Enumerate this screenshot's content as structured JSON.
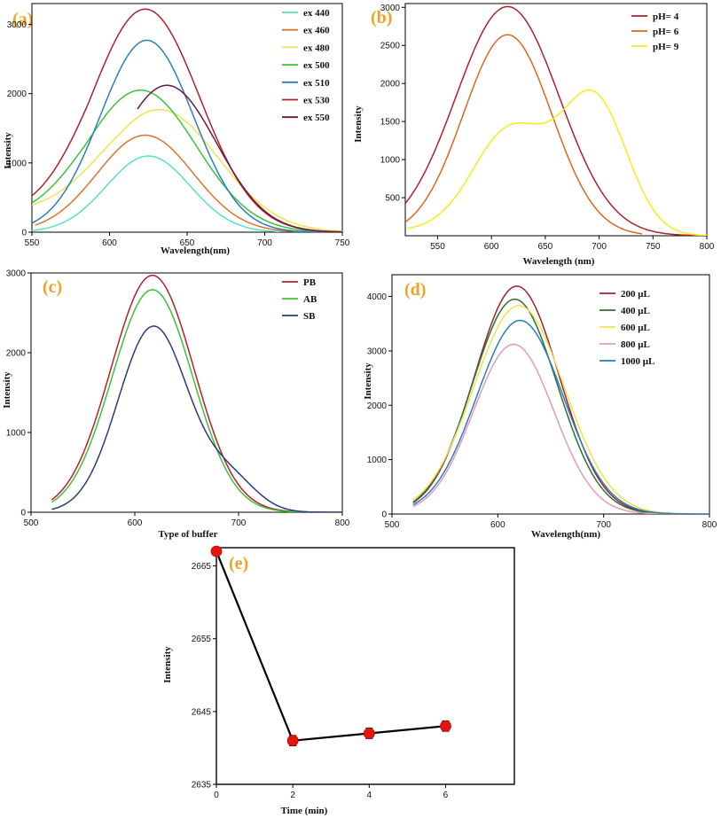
{
  "chart_data": [
    {
      "id": "a",
      "type": "line",
      "label": "(a)",
      "xlabel": "Wavelength(nm)",
      "ylabel": "Intensity",
      "xlim": [
        550,
        750
      ],
      "ylim": [
        0,
        3300
      ],
      "xticks": [
        550,
        600,
        650,
        700,
        750
      ],
      "yticks": [
        0,
        1000,
        2000,
        3000
      ],
      "legend_position": "top-right",
      "series": [
        {
          "name": "ex 440",
          "color": "#56e0c8",
          "components": [
            {
              "mu": 625,
              "sigma": 27,
              "amp": 1100
            }
          ],
          "start": 550,
          "end": 710
        },
        {
          "name": "ex 460",
          "color": "#d9752e",
          "components": [
            {
              "mu": 623,
              "sigma": 31,
              "amp": 1400
            }
          ],
          "start": 552,
          "end": 750
        },
        {
          "name": "ex 480",
          "color": "#f2e24c",
          "components": [
            {
              "mu": 632,
              "sigma": 38,
              "amp": 1770
            }
          ],
          "start": 550,
          "end": 750,
          "offset": 230
        },
        {
          "name": "ex 500",
          "color": "#3bc23b",
          "components": [
            {
              "mu": 620,
              "sigma": 36,
              "amp": 2050
            }
          ],
          "start": 550,
          "end": 750,
          "offset": 130
        },
        {
          "name": "ex 510",
          "color": "#2a7fb8",
          "components": [
            {
              "mu": 624,
              "sigma": 30,
              "amp": 2770
            }
          ],
          "start": 550,
          "end": 750
        },
        {
          "name": "ex 530",
          "color": "#b3202b",
          "components": [
            {
              "mu": 623,
              "sigma": 35,
              "amp": 3220
            }
          ],
          "start": 550,
          "end": 750,
          "offset": 180
        },
        {
          "name": "ex 550",
          "color": "#6b1a3c",
          "components": [
            {
              "mu": 637,
              "sigma": 32,
              "amp": 2120
            }
          ],
          "start": 618,
          "end": 750
        }
      ]
    },
    {
      "id": "b",
      "type": "line",
      "label": "(b)",
      "xlabel": "Wavelength (nm)",
      "ylabel": "Intensity",
      "xlim": [
        520,
        800
      ],
      "ylim": [
        0,
        3050
      ],
      "xticks": [
        550,
        600,
        650,
        700,
        750,
        800
      ],
      "yticks": [
        500,
        1000,
        1500,
        2000,
        2500,
        3000
      ],
      "legend_position": "top-right",
      "series": [
        {
          "name": "pH= 4",
          "color": "#b3202b",
          "components": [
            {
              "mu": 615,
              "sigma": 48,
              "amp": 3010
            }
          ],
          "start": 520,
          "end": 800
        },
        {
          "name": "pH= 6",
          "color": "#d9681c",
          "components": [
            {
              "mu": 615,
              "sigma": 41,
              "amp": 2640
            }
          ],
          "start": 520,
          "end": 740
        },
        {
          "name": "pH= 9",
          "color": "#ffe81a",
          "components": [
            {
              "mu": 618,
              "sigma": 36,
              "amp": 1400
            },
            {
              "mu": 696,
              "sigma": 30,
              "amp": 1760
            }
          ],
          "start": 522,
          "end": 800,
          "offset": 60
        }
      ]
    },
    {
      "id": "c",
      "type": "line",
      "label": "(c)",
      "xlabel": "Type of buffer",
      "ylabel": "Intensity",
      "xlim": [
        500,
        800
      ],
      "ylim": [
        0,
        3000
      ],
      "xticks": [
        500,
        600,
        700,
        800
      ],
      "yticks": [
        0,
        1000,
        2000,
        3000
      ],
      "legend_position": "top-right",
      "series": [
        {
          "name": "PB",
          "color": "#b3202b",
          "components": [
            {
              "mu": 617,
              "sigma": 40,
              "amp": 2970
            }
          ],
          "start": 520,
          "end": 800
        },
        {
          "name": "AB",
          "color": "#3bc23b",
          "components": [
            {
              "mu": 617,
              "sigma": 39,
              "amp": 2790
            }
          ],
          "start": 520,
          "end": 800
        },
        {
          "name": "SB",
          "color": "#2c3a7a",
          "components": [
            {
              "mu": 618,
              "sigma": 34,
              "amp": 2330
            },
            {
              "mu": 693,
              "sigma": 25,
              "amp": 380
            }
          ],
          "start": 520,
          "end": 800
        }
      ]
    },
    {
      "id": "d",
      "type": "line",
      "label": "(d)",
      "xlabel": "Wavelength(nm)",
      "ylabel": "Intensity",
      "xlim": [
        500,
        800
      ],
      "ylim": [
        0,
        4400
      ],
      "xticks": [
        500,
        600,
        700,
        800
      ],
      "yticks": [
        0,
        1000,
        2000,
        3000,
        4000
      ],
      "legend_position": "top-right",
      "series": [
        {
          "name": "200 μL",
          "color": "#a0202e",
          "components": [
            {
              "mu": 618,
              "sigma": 40,
              "amp": 4190
            }
          ],
          "start": 520,
          "end": 800
        },
        {
          "name": "400 μL",
          "color": "#2e6e3a",
          "components": [
            {
              "mu": 616,
              "sigma": 40,
              "amp": 3950
            }
          ],
          "start": 520,
          "end": 800
        },
        {
          "name": "600 μL",
          "color": "#f2e24c",
          "components": [
            {
              "mu": 620,
              "sigma": 43,
              "amp": 3830
            }
          ],
          "start": 520,
          "end": 800
        },
        {
          "name": "800 μL",
          "color": "#e59ab8",
          "components": [
            {
              "mu": 615,
              "sigma": 38,
              "amp": 3120
            }
          ],
          "start": 520,
          "end": 800
        },
        {
          "name": "1000 μL",
          "color": "#2a7fb8",
          "components": [
            {
              "mu": 621,
              "sigma": 41,
              "amp": 3560
            }
          ],
          "start": 520,
          "end": 800
        }
      ]
    },
    {
      "id": "e",
      "type": "scatter",
      "label": "(e)",
      "xlabel": "Time (min)",
      "ylabel": "Intensity",
      "xlim": [
        0,
        7.8
      ],
      "ylim": [
        2635,
        2667.5
      ],
      "xticks": [
        0,
        2,
        4,
        6
      ],
      "yticks": [
        2635,
        2645,
        2655,
        2665
      ],
      "series": [
        {
          "name": "Intensity",
          "x": [
            0,
            2,
            4,
            6
          ],
          "y": [
            2667,
            2641,
            2642,
            2643
          ],
          "error": [
            0,
            0.7,
            0.7,
            0.7
          ],
          "color": "#e8150f"
        }
      ]
    }
  ]
}
